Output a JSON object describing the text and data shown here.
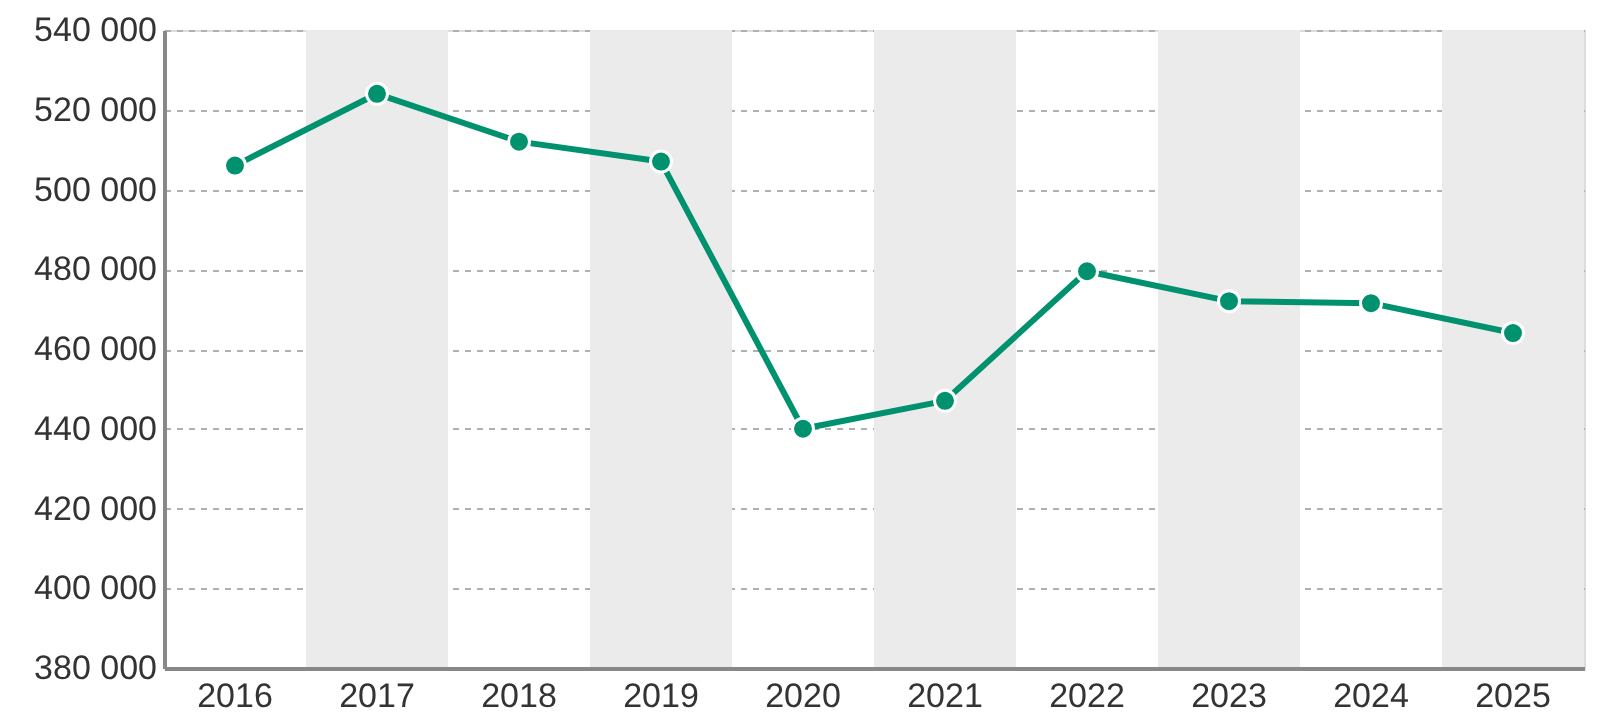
{
  "chart_data": {
    "type": "line",
    "categories": [
      "2016",
      "2017",
      "2018",
      "2019",
      "2020",
      "2021",
      "2022",
      "2023",
      "2024",
      "2025"
    ],
    "series": [
      {
        "color": "#00916e",
        "values": [
          506000,
          524000,
          512000,
          507000,
          440000,
          447000,
          479500,
          472000,
          471500,
          464000
        ]
      }
    ],
    "ylim": [
      380000,
      540000
    ],
    "yticks": [
      {
        "value": 380000,
        "label": "380 000"
      },
      {
        "value": 400000,
        "label": "400 000"
      },
      {
        "value": 420000,
        "label": "420 000"
      },
      {
        "value": 440000,
        "label": "440 000"
      },
      {
        "value": 460000,
        "label": "460 000"
      },
      {
        "value": 480000,
        "label": "480 000"
      },
      {
        "value": 500000,
        "label": "500 000"
      },
      {
        "value": 520000,
        "label": "520 000"
      },
      {
        "value": 540000,
        "label": "540 000"
      }
    ],
    "bands": [
      {
        "axis": "x",
        "from": "2017",
        "to": "2017",
        "color": "#ebebeb"
      },
      {
        "axis": "x",
        "from": "2019",
        "to": "2019",
        "color": "#ebebeb"
      },
      {
        "axis": "x",
        "from": "2021",
        "to": "2021",
        "color": "#ebebeb"
      },
      {
        "axis": "x",
        "from": "2023",
        "to": "2023",
        "color": "#ebebeb"
      },
      {
        "axis": "x",
        "from": "2025",
        "to": "2025",
        "color": "#ebebeb"
      }
    ],
    "grid": "y",
    "marker": "circle",
    "line_style": "solid"
  }
}
